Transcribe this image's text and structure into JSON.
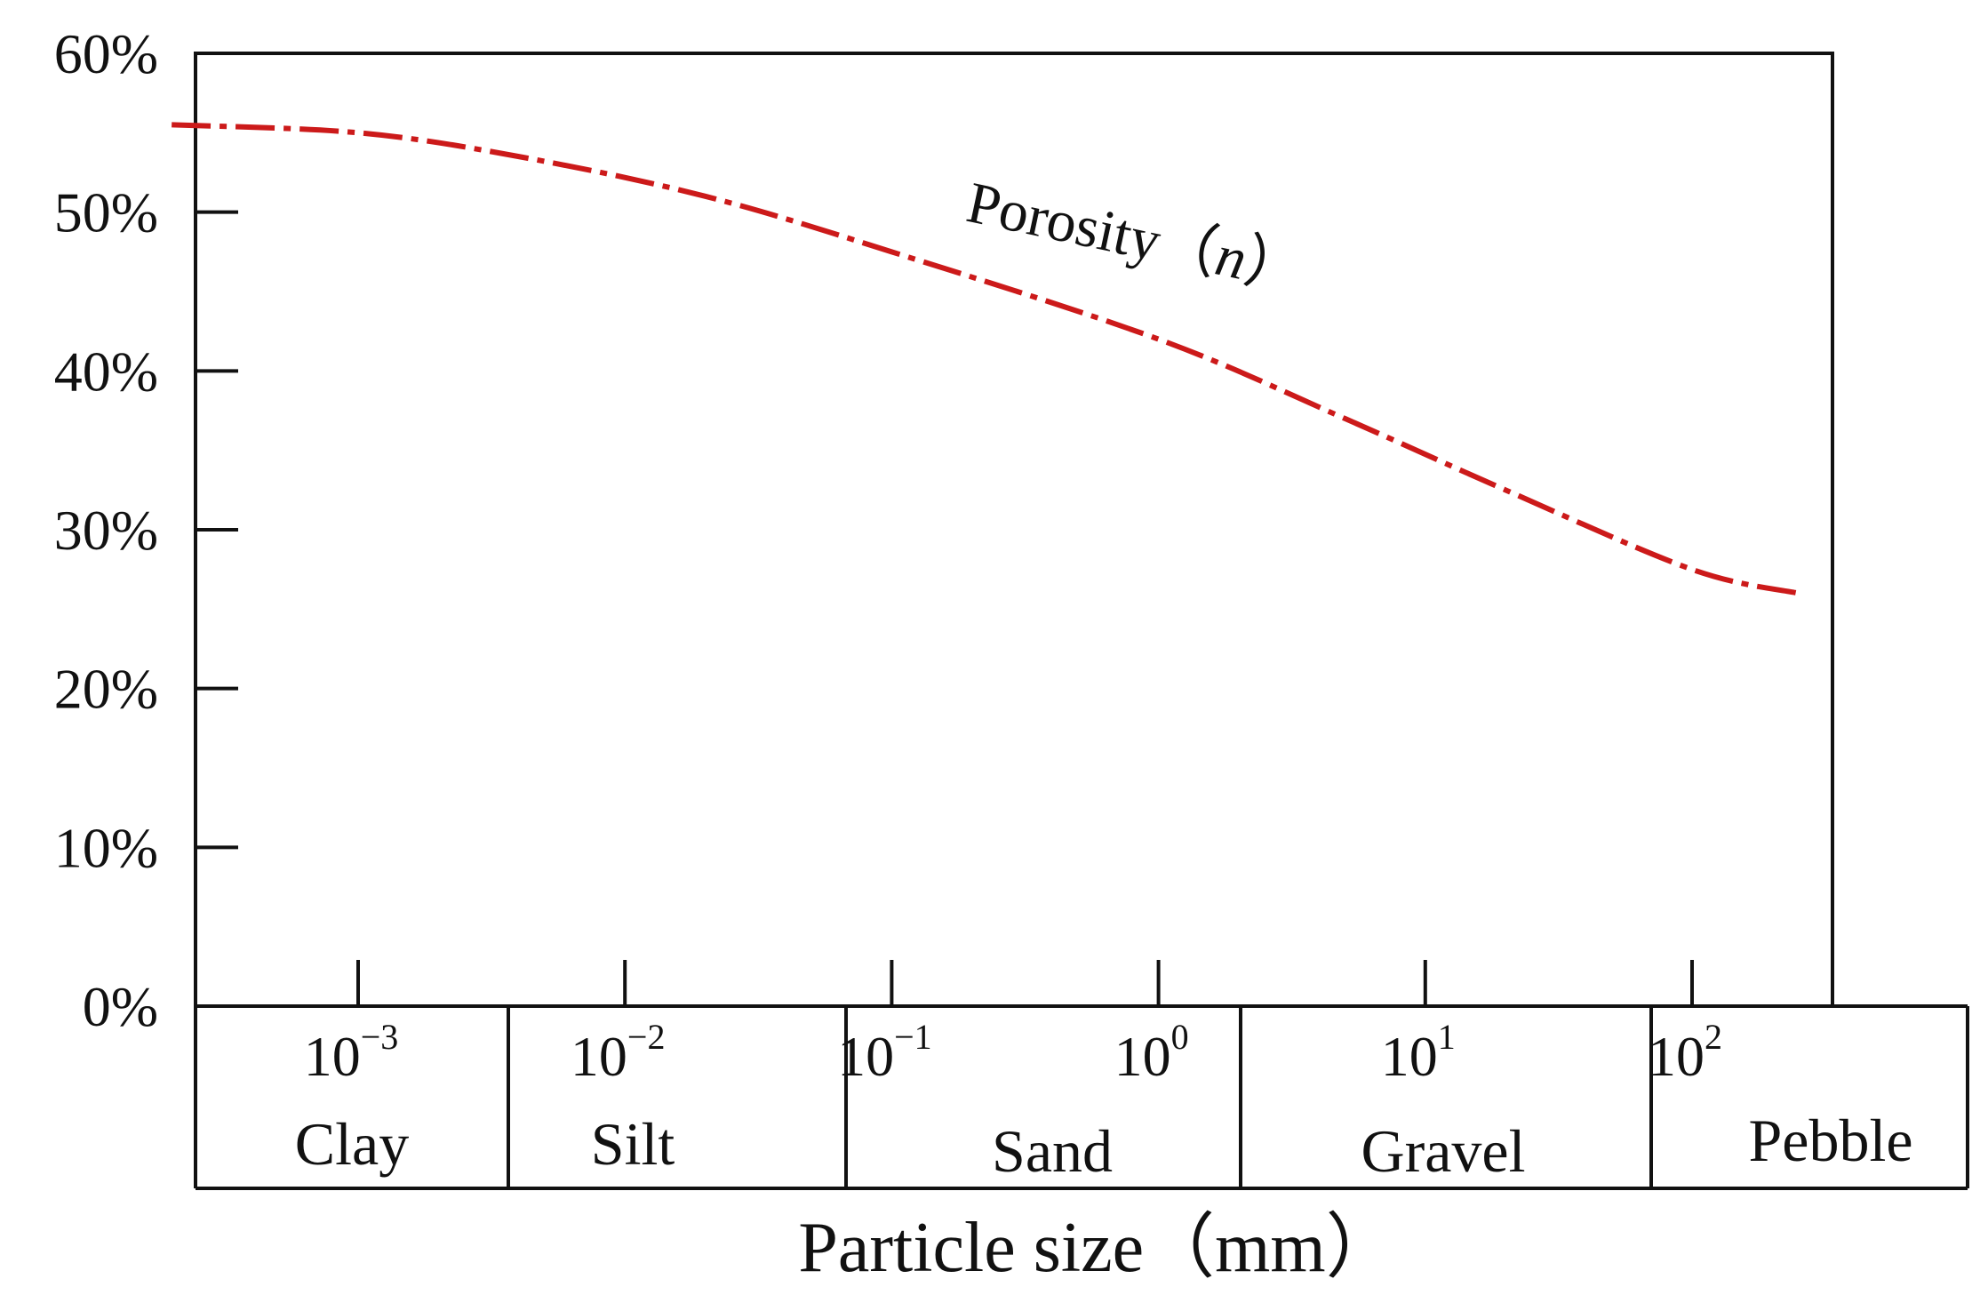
{
  "chart_data": {
    "type": "line",
    "title": "",
    "xlabel": "Particle size（mm）",
    "ylabel": "",
    "x_scale": "log",
    "y_ticks": [
      "0%",
      "10%",
      "20%",
      "30%",
      "40%",
      "50%",
      "60%"
    ],
    "ylim": [
      0,
      60
    ],
    "x_ticks": [
      {
        "base": "10",
        "exp": "−3",
        "value": 0.001
      },
      {
        "base": "10",
        "exp": "−2",
        "value": 0.01
      },
      {
        "base": "10",
        "exp": "−1",
        "value": 0.1
      },
      {
        "base": "10",
        "exp": "0",
        "value": 1
      },
      {
        "base": "10",
        "exp": "1",
        "value": 10
      },
      {
        "base": "10",
        "exp": "2",
        "value": 100
      }
    ],
    "categories": [
      "Clay",
      "Silt",
      "Sand",
      "Gravel",
      "Pebble"
    ],
    "series": [
      {
        "name": "Porosity",
        "name_italic": "n",
        "color": "#cc1a1a",
        "x": [
          0.0002,
          0.001,
          0.004,
          0.02,
          0.1,
          1,
          5,
          20,
          100,
          250
        ],
        "y": [
          55.5,
          55.0,
          53.5,
          51.0,
          47.5,
          42.0,
          37.0,
          32.5,
          27.5,
          26.0
        ]
      }
    ]
  }
}
